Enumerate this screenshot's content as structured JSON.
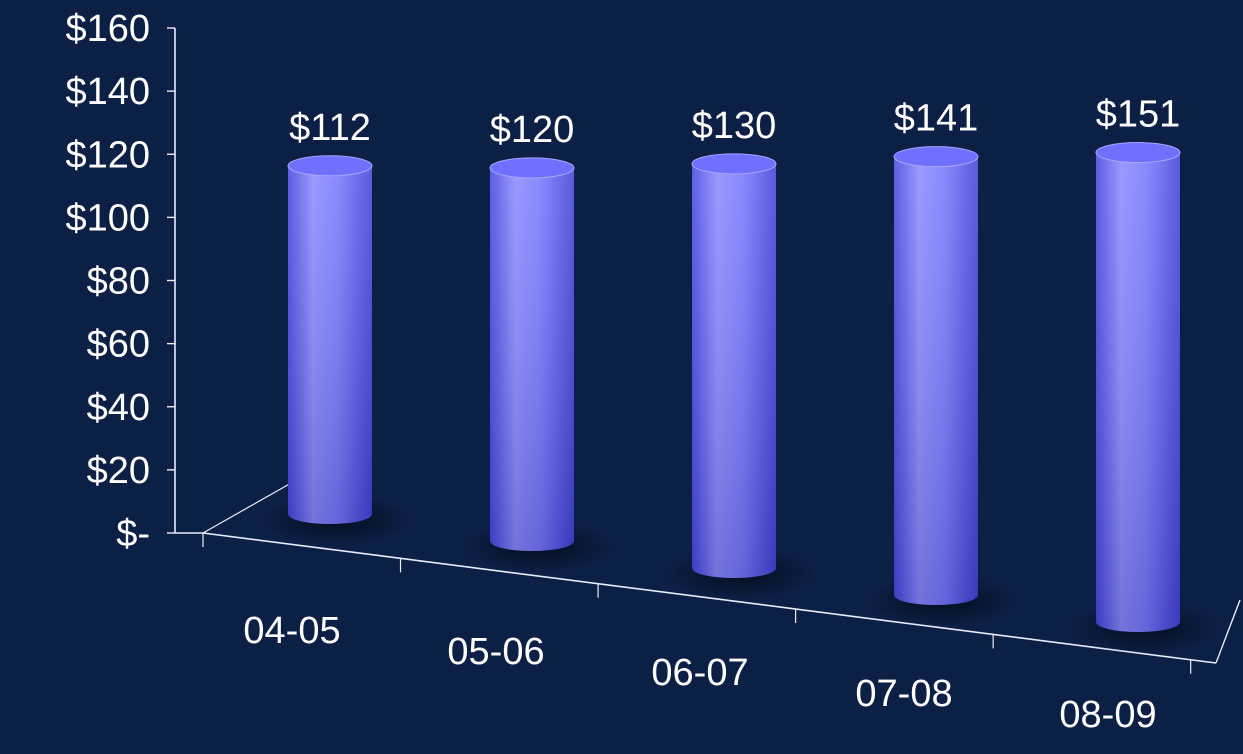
{
  "colors": {
    "background": "#0c1f45",
    "bar": "#7070ff",
    "bar_light": "#a5a5ff",
    "bar_dark": "#3b3bdc",
    "axis": "#e8ecff",
    "text": "#ffffff"
  },
  "chart_data": {
    "type": "bar",
    "style": "3d-cylinder",
    "categories": [
      "04-05",
      "05-06",
      "06-07",
      "07-08",
      "08-09"
    ],
    "values": [
      112,
      120,
      130,
      141,
      151
    ],
    "data_labels": [
      "$112",
      "$120",
      "$130",
      "$141",
      "$151"
    ],
    "y_tick_labels": [
      "$-",
      "$20",
      "$40",
      "$60",
      "$80",
      "$100",
      "$120",
      "$140",
      "$160"
    ],
    "ylim": [
      0,
      160
    ],
    "grid": false,
    "legend": "none"
  }
}
